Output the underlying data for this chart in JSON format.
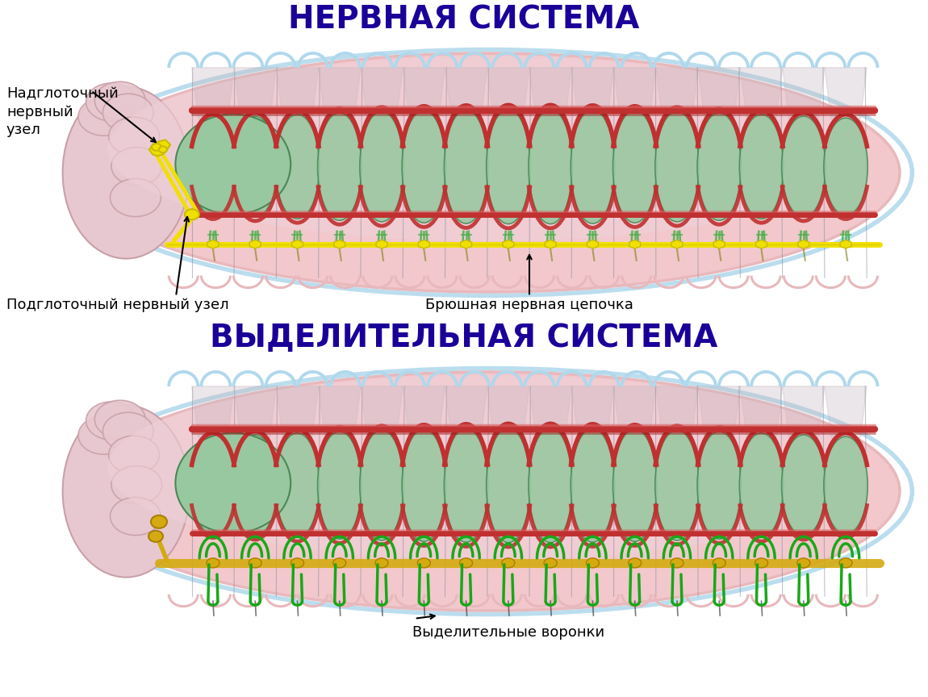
{
  "title1": "НЕРВНАЯ СИСТЕМА",
  "title2": "ВЫДЕЛИТЕЛЬНАЯ СИСТЕМА",
  "label_top1": "Надглоточный\nнервный\nузел",
  "label_bot1": "Подглоточный нервный узел",
  "label_bot2": "Брюшная нервная цепочка",
  "label_bot3": "Выделительные воронки",
  "title_color": "#1a0099",
  "title_fontsize": 28,
  "bg_color": "#ffffff",
  "body_pink": "#f2c8cc",
  "body_pink_outer": "#e8b8bc",
  "body_inner_pink": "#f0d0d8",
  "gut_green": "#98c8a0",
  "gut_green_dark": "#4a8855",
  "gut_green_light": "#b8dcc0",
  "vessels_red": "#c03030",
  "vessels_red_light": "#d86060",
  "blue_top": "#b0d8ec",
  "nerve_yellow": "#f0e000",
  "nerve_yellow_dark": "#c8bc00",
  "nerve_green": "#48b048",
  "excr_green": "#18a818",
  "excr_yellow": "#d4aa10",
  "excr_yellow_dark": "#a88000",
  "head_pink": "#e8c8d0",
  "head_pink_dark": "#c8a0a8",
  "seg_div_color": "#808898",
  "seg_fan_color": "#c8b8c0",
  "label_fontsize": 13,
  "n_segs": 16
}
